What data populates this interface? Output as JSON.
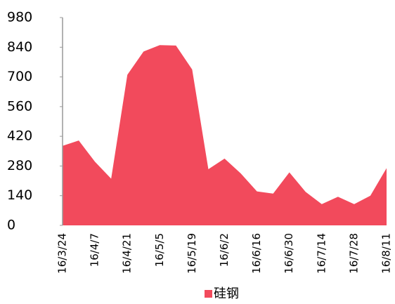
{
  "chart_data": {
    "type": "area",
    "categories": [
      "16/3/24",
      null,
      "16/4/7",
      null,
      "16/4/21",
      null,
      "16/5/5",
      null,
      "16/5/19",
      null,
      "16/6/2",
      null,
      "16/6/16",
      null,
      "16/6/30",
      null,
      "16/7/14",
      null,
      "16/7/28",
      null,
      "16/8/11"
    ],
    "series": [
      {
        "name": "硅钢",
        "color": "#f24a5c",
        "values": [
          375,
          400,
          300,
          220,
          710,
          820,
          850,
          848,
          735,
          265,
          315,
          245,
          160,
          150,
          250,
          158,
          100,
          135,
          100,
          140,
          270
        ]
      }
    ],
    "ylim": [
      0,
      980
    ],
    "yticks": [
      0,
      140,
      280,
      420,
      560,
      700,
      840,
      980
    ],
    "legend": "bottom"
  }
}
